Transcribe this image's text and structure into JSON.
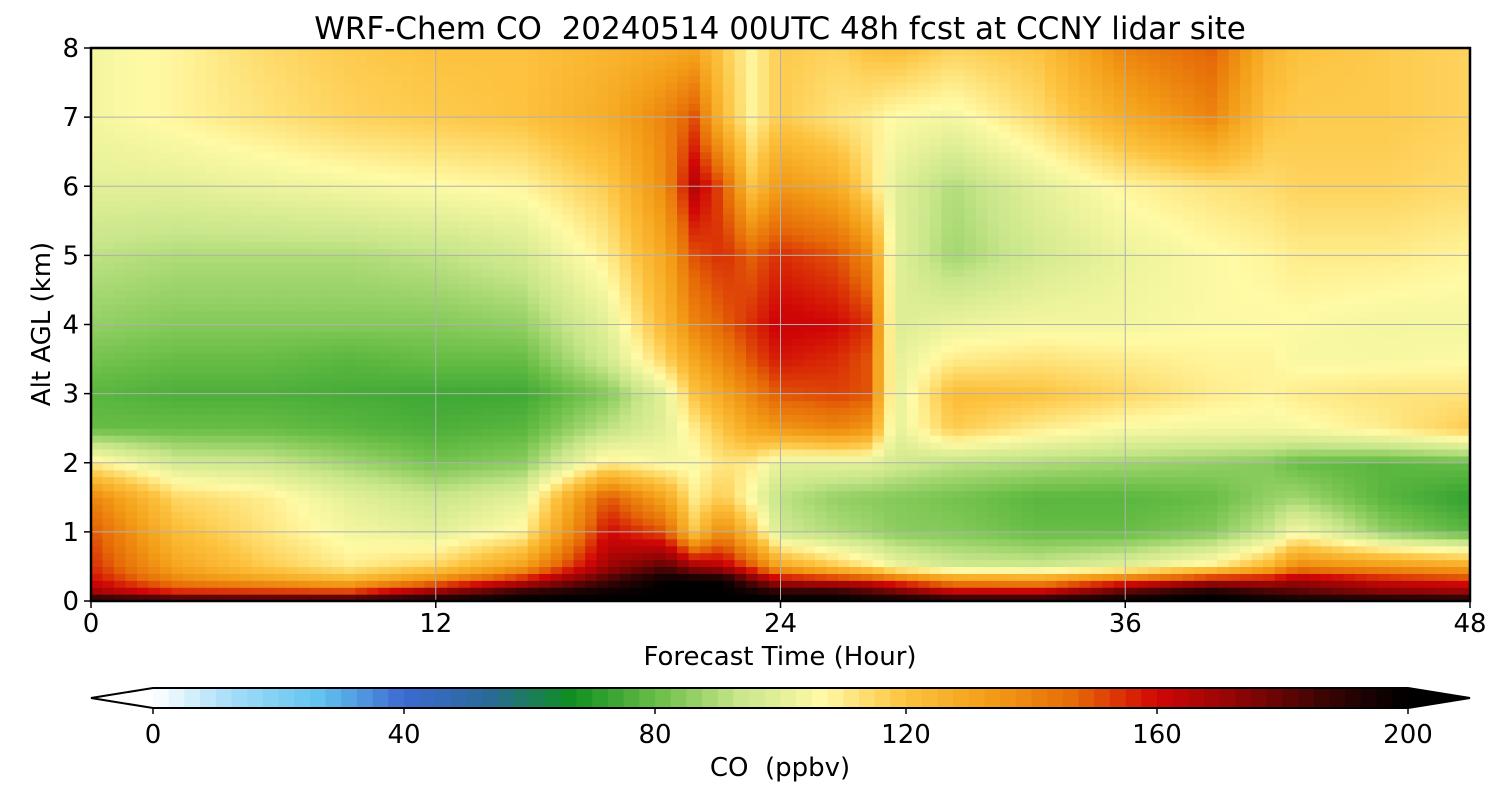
{
  "chart_data": {
    "type": "heatmap",
    "title": "WRF-Chem CO  20240514 00UTC 48h fcst at CCNY lidar site",
    "xlabel": "Forecast Time (Hour)",
    "ylabel": "Alt AGL (km)",
    "xlim": [
      0,
      48
    ],
    "ylim": [
      0,
      8
    ],
    "x_ticks": [
      "0",
      "12",
      "24",
      "36",
      "48"
    ],
    "y_ticks": [
      "0",
      "1",
      "2",
      "3",
      "4",
      "5",
      "6",
      "7",
      "8"
    ],
    "grid": true,
    "x": [
      0,
      3,
      6,
      9,
      12,
      15,
      18,
      20,
      21,
      22,
      23,
      24,
      26,
      27,
      28,
      30,
      33,
      36,
      39,
      41,
      42,
      45,
      48
    ],
    "y": [
      0,
      0.1,
      0.3,
      0.5,
      1.0,
      1.5,
      2.0,
      2.5,
      3.0,
      3.5,
      4.0,
      5.0,
      6.0,
      7.0,
      8.0
    ],
    "z": [
      [
        200,
        200,
        200,
        200,
        200,
        200,
        200,
        200,
        200,
        200,
        200,
        200,
        200,
        200,
        200,
        200,
        200,
        200,
        200,
        200,
        200,
        200,
        200
      ],
      [
        172,
        160,
        160,
        160,
        180,
        195,
        200,
        200,
        200,
        200,
        200,
        195,
        195,
        190,
        185,
        170,
        170,
        190,
        200,
        190,
        185,
        178,
        175
      ],
      [
        160,
        140,
        132,
        125,
        140,
        160,
        185,
        200,
        200,
        200,
        180,
        165,
        160,
        158,
        150,
        138,
        135,
        150,
        165,
        165,
        170,
        160,
        155
      ],
      [
        155,
        130,
        118,
        110,
        116,
        132,
        170,
        182,
        170,
        165,
        150,
        130,
        118,
        112,
        103,
        96,
        95,
        100,
        110,
        125,
        140,
        135,
        130
      ],
      [
        150,
        122,
        112,
        104,
        100,
        108,
        160,
        150,
        120,
        140,
        120,
        95,
        90,
        88,
        85,
        84,
        80,
        80,
        84,
        94,
        105,
        86,
        78
      ],
      [
        140,
        115,
        110,
        100,
        94,
        100,
        150,
        130,
        110,
        118,
        105,
        92,
        86,
        85,
        84,
        82,
        78,
        78,
        80,
        86,
        88,
        78,
        72
      ],
      [
        110,
        96,
        94,
        88,
        82,
        85,
        110,
        105,
        105,
        112,
        110,
        100,
        100,
        100,
        96,
        92,
        90,
        88,
        86,
        84,
        80,
        78,
        80
      ],
      [
        80,
        80,
        80,
        78,
        76,
        78,
        92,
        100,
        110,
        120,
        130,
        135,
        140,
        135,
        100,
        118,
        110,
        105,
        104,
        104,
        105,
        110,
        118
      ],
      [
        78,
        76,
        76,
        75,
        74,
        74,
        84,
        100,
        120,
        130,
        140,
        150,
        152,
        150,
        100,
        122,
        120,
        115,
        110,
        108,
        110,
        112,
        112
      ],
      [
        82,
        80,
        80,
        78,
        80,
        80,
        96,
        116,
        130,
        140,
        150,
        158,
        155,
        150,
        100,
        110,
        112,
        110,
        108,
        108,
        105,
        105,
        106
      ],
      [
        86,
        84,
        84,
        84,
        84,
        86,
        100,
        124,
        140,
        148,
        155,
        162,
        160,
        155,
        98,
        102,
        104,
        104,
        106,
        106,
        106,
        104,
        104
      ],
      [
        92,
        90,
        90,
        90,
        92,
        96,
        110,
        130,
        150,
        155,
        148,
        155,
        150,
        140,
        100,
        88,
        96,
        102,
        106,
        108,
        110,
        110,
        108
      ],
      [
        100,
        100,
        102,
        104,
        106,
        108,
        118,
        138,
        165,
        150,
        120,
        135,
        128,
        115,
        100,
        90,
        100,
        108,
        112,
        114,
        116,
        116,
        114
      ],
      [
        104,
        108,
        112,
        116,
        118,
        120,
        128,
        140,
        150,
        122,
        108,
        118,
        112,
        110,
        106,
        104,
        114,
        128,
        140,
        120,
        118,
        118,
        116
      ],
      [
        104,
        108,
        114,
        118,
        120,
        120,
        125,
        128,
        130,
        118,
        108,
        118,
        116,
        120,
        122,
        116,
        120,
        140,
        148,
        125,
        120,
        118,
        116
      ]
    ],
    "colorbar": {
      "label": "CO  (ppbv)",
      "min": 0,
      "max": 200,
      "ticks": [
        "0",
        "40",
        "80",
        "120",
        "160",
        "200"
      ],
      "extend": "both",
      "colors": [
        "#ffffff",
        "#9fdcf8",
        "#62c3ef",
        "#3c6ad0",
        "#2a6a9a",
        "#0f8f20",
        "#67bd45",
        "#c8e68a",
        "#fffaa5",
        "#fdc23e",
        "#f39d17",
        "#e66b07",
        "#d10606",
        "#8c0505",
        "#3a0404",
        "#000000"
      ]
    }
  }
}
